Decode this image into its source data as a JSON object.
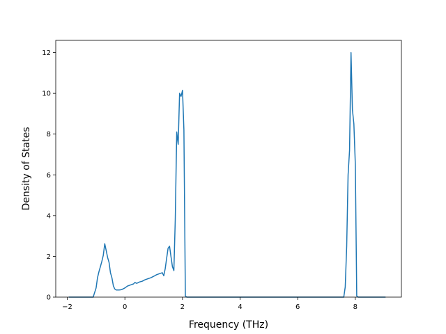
{
  "chart_data": {
    "type": "line",
    "title": "",
    "xlabel": "Frequency (THz)",
    "ylabel": "Density of States",
    "xlim": [
      -2.4,
      9.6
    ],
    "ylim": [
      0,
      12.6
    ],
    "xticks": [
      -2,
      0,
      2,
      4,
      6,
      8
    ],
    "yticks": [
      0,
      2,
      4,
      6,
      8,
      10,
      12
    ],
    "xtick_labels": [
      "−2",
      "0",
      "2",
      "4",
      "6",
      "8"
    ],
    "ytick_labels": [
      "0",
      "2",
      "4",
      "6",
      "8",
      "10",
      "12"
    ],
    "grid": false,
    "legend": "none",
    "series": [
      {
        "color": "#1f77b4",
        "x": [
          -1.95,
          -1.1,
          -1.0,
          -0.95,
          -0.9,
          -0.85,
          -0.8,
          -0.75,
          -0.7,
          -0.65,
          -0.6,
          -0.55,
          -0.5,
          -0.45,
          -0.4,
          -0.35,
          -0.3,
          -0.25,
          -0.2,
          -0.15,
          -0.1,
          0.0,
          0.1,
          0.2,
          0.3,
          0.35,
          0.4,
          0.45,
          0.5,
          0.6,
          0.7,
          0.8,
          0.9,
          1.0,
          1.1,
          1.2,
          1.3,
          1.35,
          1.4,
          1.45,
          1.5,
          1.55,
          1.6,
          1.65,
          1.7,
          1.75,
          1.8,
          1.85,
          1.9,
          1.95,
          2.0,
          2.05,
          2.1,
          2.15,
          2.2,
          7.6,
          7.65,
          7.7,
          7.75,
          7.8,
          7.85,
          7.9,
          7.95,
          8.0,
          8.05,
          8.1,
          8.15,
          9.05
        ],
        "y": [
          0,
          0,
          0.45,
          0.95,
          1.25,
          1.5,
          1.75,
          2.05,
          2.62,
          2.3,
          1.95,
          1.7,
          1.2,
          0.95,
          0.55,
          0.4,
          0.35,
          0.35,
          0.35,
          0.36,
          0.38,
          0.45,
          0.55,
          0.6,
          0.65,
          0.72,
          0.68,
          0.7,
          0.74,
          0.78,
          0.85,
          0.9,
          0.95,
          1.02,
          1.1,
          1.15,
          1.2,
          1.05,
          1.4,
          1.9,
          2.4,
          2.5,
          2.0,
          1.5,
          1.3,
          3.8,
          8.1,
          7.5,
          10.0,
          9.85,
          10.15,
          8.2,
          0.05,
          0,
          0,
          0,
          0.5,
          2.5,
          6.0,
          7.2,
          12.0,
          9.2,
          8.5,
          6.5,
          0.05,
          0,
          0,
          0
        ]
      }
    ]
  }
}
